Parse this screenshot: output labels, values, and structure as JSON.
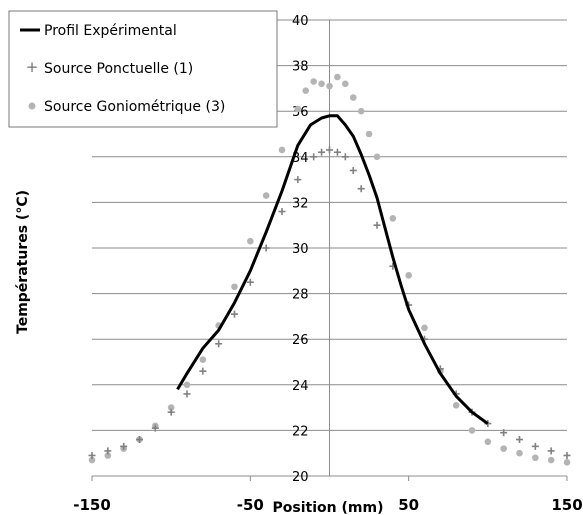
{
  "chart_data": {
    "type": "line",
    "xlabel": "Position (mm)",
    "ylabel": "Températures (°C)",
    "xlim": [
      -150,
      150
    ],
    "ylim": [
      20,
      40
    ],
    "x_ticks": [
      "-150",
      "-50",
      "50",
      "150"
    ],
    "y_ticks": [
      "20",
      "22",
      "24",
      "26",
      "28",
      "30",
      "32",
      "34",
      "36",
      "38",
      "40"
    ],
    "grid": "horizontal",
    "legend_position": "top-left",
    "series": [
      {
        "name": "Profil Expérimental",
        "marker": "line",
        "color": "#000000",
        "x": [
          -96,
          -90,
          -80,
          -70,
          -60,
          -50,
          -40,
          -30,
          -20,
          -12,
          -5,
          0,
          5,
          10,
          15,
          20,
          25,
          30,
          35,
          40,
          45,
          50,
          60,
          70,
          80,
          90,
          100
        ],
        "y": [
          23.8,
          24.5,
          25.6,
          26.4,
          27.6,
          29.0,
          30.7,
          32.5,
          34.5,
          35.4,
          35.7,
          35.8,
          35.8,
          35.4,
          34.9,
          34.1,
          33.2,
          32.2,
          30.9,
          29.6,
          28.4,
          27.3,
          25.8,
          24.5,
          23.5,
          22.8,
          22.3
        ]
      },
      {
        "name": "Source  Ponctuelle (1)",
        "marker": "+",
        "color": "#808080",
        "x": [
          -150,
          -140,
          -130,
          -120,
          -110,
          -100,
          -90,
          -80,
          -70,
          -60,
          -50,
          -40,
          -30,
          -20,
          -10,
          -5,
          0,
          5,
          10,
          15,
          20,
          30,
          40,
          50,
          60,
          70,
          80,
          90,
          100,
          110,
          120,
          130,
          140,
          150
        ],
        "y": [
          20.9,
          21.1,
          21.3,
          21.6,
          22.1,
          22.8,
          23.6,
          24.6,
          25.8,
          27.1,
          28.5,
          30.0,
          31.6,
          33.0,
          34.0,
          34.2,
          34.3,
          34.2,
          34.0,
          33.4,
          32.6,
          31.0,
          29.2,
          27.5,
          26.0,
          24.7,
          23.6,
          22.8,
          22.3,
          21.9,
          21.6,
          21.3,
          21.1,
          20.9
        ]
      },
      {
        "name": "Source Goniométrique (3)",
        "marker": "circle",
        "color": "#b4b4b4",
        "x": [
          -150,
          -140,
          -130,
          -120,
          -110,
          -100,
          -90,
          -80,
          -70,
          -60,
          -50,
          -40,
          -30,
          -20,
          -15,
          -10,
          -5,
          0,
          5,
          10,
          15,
          20,
          25,
          30,
          40,
          50,
          60,
          70,
          80,
          90,
          100,
          110,
          120,
          130,
          140,
          150
        ],
        "y": [
          20.7,
          20.9,
          21.2,
          21.6,
          22.2,
          23.0,
          24.0,
          25.1,
          26.6,
          28.3,
          30.3,
          32.3,
          34.3,
          36.1,
          36.9,
          37.3,
          37.2,
          37.1,
          37.5,
          37.2,
          36.6,
          36.0,
          35.0,
          34.0,
          31.3,
          28.8,
          26.5,
          24.6,
          23.1,
          22.0,
          21.5,
          21.2,
          21.0,
          20.8,
          20.7,
          20.6
        ]
      }
    ]
  }
}
